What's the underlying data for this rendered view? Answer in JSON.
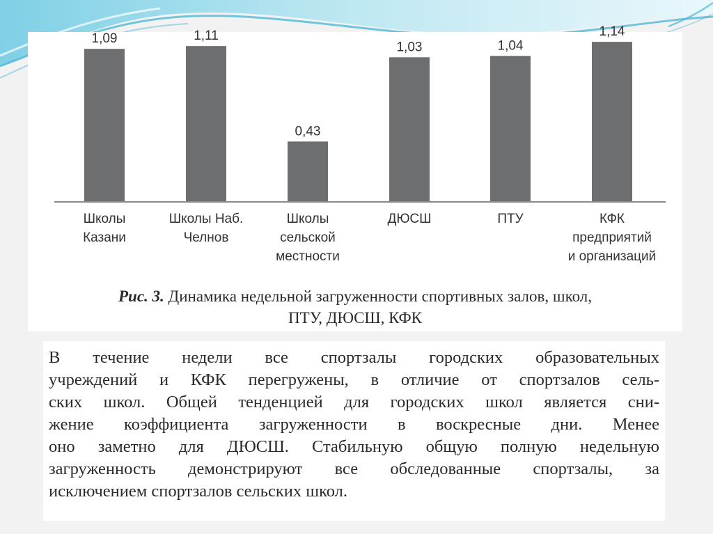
{
  "chart_data": {
    "type": "bar",
    "categories": [
      [
        "Школы",
        "Казани"
      ],
      [
        "Школы Наб.",
        "Челнов"
      ],
      [
        "Школы",
        "сельской",
        "местности"
      ],
      [
        "ДЮСШ"
      ],
      [
        "ПТУ"
      ],
      [
        "КФК",
        "предприятий",
        "и организаций"
      ]
    ],
    "values": [
      1.09,
      1.11,
      0.43,
      1.03,
      1.04,
      1.14
    ],
    "value_labels": [
      "1,09",
      "1,11",
      "0,43",
      "1,03",
      "1,04",
      "1,14"
    ],
    "ylim": [
      0,
      1.2
    ],
    "bar_color": "#6d6e70",
    "grid": false,
    "title": ""
  },
  "caption": {
    "figure_label": "Рис. 3.",
    "text_line1": " Динамика недельной загруженности спортивных залов, школ,",
    "text_line2": "ПТУ, ДЮСШ, КФК"
  },
  "body_text": {
    "lines": [
      "В течение недели все спортзалы городских образовательных",
      "учреждений и КФК перегружены, в отличие от спортзалов сель-",
      "ских школ. Общей тенденцией для городских школ является сни-",
      "жение коэффициента загруженности в воскресные дни. Менее",
      "оно заметно для ДЮСШ. Стабильную общую полную недельную",
      "загруженность демонстрируют все обследованные спортзалы, за",
      "исключением спортзалов сельских школ."
    ]
  },
  "theme": {
    "background": "#f2f2f2",
    "wave_color": "#4fb8d6"
  }
}
